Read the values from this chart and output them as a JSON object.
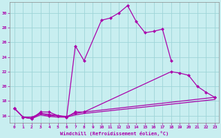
{
  "xlabel": "Windchill (Refroidissement éolien,°C)",
  "background_color": "#c8eef0",
  "grid_color": "#9dd4d8",
  "line_color": "#aa00aa",
  "xlim": [
    -0.5,
    23.5
  ],
  "ylim": [
    15.0,
    31.5
  ],
  "yticks": [
    16,
    18,
    20,
    22,
    24,
    26,
    28,
    30
  ],
  "xticks": [
    0,
    1,
    2,
    3,
    4,
    5,
    6,
    7,
    8,
    9,
    10,
    11,
    12,
    13,
    14,
    15,
    16,
    17,
    18,
    19,
    20,
    21,
    22,
    23
  ],
  "line1_x": [
    0,
    1,
    2,
    3,
    4,
    5,
    6,
    7,
    8,
    10,
    11,
    12,
    13,
    14,
    15,
    16,
    17,
    18
  ],
  "line1_y": [
    17.0,
    15.8,
    15.6,
    16.5,
    16.5,
    16.0,
    15.8,
    25.5,
    23.5,
    29.0,
    29.3,
    30.0,
    31.0,
    28.8,
    27.3,
    27.5,
    27.8,
    23.5
  ],
  "line2_x": [
    0,
    1,
    2,
    3,
    4,
    5,
    6,
    7,
    8,
    18,
    19,
    20,
    21,
    22,
    23
  ],
  "line2_y": [
    17.0,
    15.8,
    15.6,
    16.3,
    16.2,
    16.0,
    15.8,
    16.5,
    16.5,
    22.0,
    21.8,
    21.5,
    20.0,
    19.2,
    18.5
  ],
  "line3_x": [
    0,
    1,
    2,
    3,
    4,
    5,
    6,
    7,
    8,
    23
  ],
  "line3_y": [
    17.0,
    15.8,
    15.8,
    16.3,
    16.0,
    16.0,
    15.9,
    16.3,
    16.5,
    18.5
  ],
  "line4_x": [
    0,
    1,
    2,
    3,
    4,
    5,
    6,
    7,
    8,
    23
  ],
  "line4_y": [
    17.0,
    15.8,
    15.6,
    16.1,
    15.9,
    15.8,
    15.8,
    16.1,
    16.3,
    18.2
  ]
}
